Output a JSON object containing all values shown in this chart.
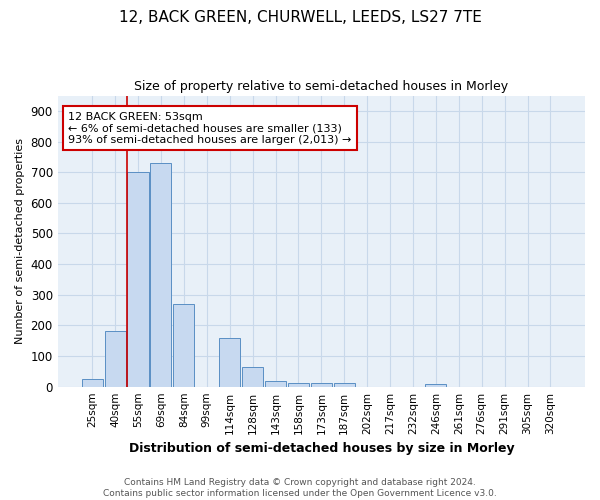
{
  "title": "12, BACK GREEN, CHURWELL, LEEDS, LS27 7TE",
  "subtitle": "Size of property relative to semi-detached houses in Morley",
  "xlabel": "Distribution of semi-detached houses by size in Morley",
  "ylabel": "Number of semi-detached properties",
  "categories": [
    "25sqm",
    "40sqm",
    "55sqm",
    "69sqm",
    "84sqm",
    "99sqm",
    "114sqm",
    "128sqm",
    "143sqm",
    "158sqm",
    "173sqm",
    "187sqm",
    "202sqm",
    "217sqm",
    "232sqm",
    "246sqm",
    "261sqm",
    "276sqm",
    "291sqm",
    "305sqm",
    "320sqm"
  ],
  "values": [
    25,
    183,
    700,
    730,
    270,
    0,
    160,
    63,
    18,
    13,
    11,
    11,
    0,
    0,
    0,
    8,
    0,
    0,
    0,
    0,
    0
  ],
  "bar_color": "#c7d9f0",
  "bar_edge_color": "#5a8fc4",
  "highlight_index": 2,
  "highlight_color": "#cc0000",
  "ylim": [
    0,
    950
  ],
  "yticks": [
    0,
    100,
    200,
    300,
    400,
    500,
    600,
    700,
    800,
    900
  ],
  "annotation_text": "12 BACK GREEN: 53sqm\n← 6% of semi-detached houses are smaller (133)\n93% of semi-detached houses are larger (2,013) →",
  "annotation_box_color": "#ffffff",
  "annotation_box_edge": "#cc0000",
  "footer_text": "Contains HM Land Registry data © Crown copyright and database right 2024.\nContains public sector information licensed under the Open Government Licence v3.0.",
  "background_color": "#ffffff",
  "axes_bg_color": "#e8f0f8",
  "grid_color": "#c8d8ea"
}
